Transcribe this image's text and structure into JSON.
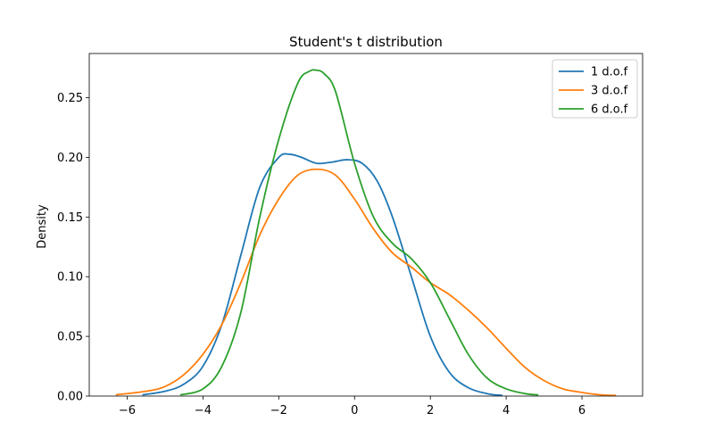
{
  "chart_data": {
    "type": "line",
    "title": "Student's t distribution",
    "xlabel": "",
    "ylabel": "Density",
    "xlim": [
      -7.0,
      7.6
    ],
    "ylim": [
      0.0,
      0.287
    ],
    "xticks": [
      -6,
      -4,
      -2,
      0,
      2,
      4,
      6
    ],
    "xtick_labels": [
      "−6",
      "−4",
      "−2",
      "0",
      "2",
      "4",
      "6"
    ],
    "yticks": [
      0.0,
      0.05,
      0.1,
      0.15,
      0.2,
      0.25
    ],
    "ytick_labels": [
      "0.00",
      "0.05",
      "0.10",
      "0.15",
      "0.20",
      "0.25"
    ],
    "grid": false,
    "legend": "top-right",
    "series": [
      {
        "name": "1 d.o.f",
        "color": "#1f77b4",
        "x": [
          -5.6,
          -5.0,
          -4.5,
          -4.0,
          -3.5,
          -3.0,
          -2.5,
          -2.0,
          -1.7,
          -1.4,
          -1.0,
          -0.6,
          -0.2,
          0.2,
          0.6,
          1.0,
          1.5,
          2.0,
          2.5,
          3.0,
          3.5,
          3.9
        ],
        "y": [
          0.001,
          0.004,
          0.01,
          0.025,
          0.06,
          0.118,
          0.175,
          0.2,
          0.2025,
          0.2,
          0.195,
          0.196,
          0.198,
          0.195,
          0.18,
          0.15,
          0.1,
          0.05,
          0.02,
          0.007,
          0.002,
          0.0005
        ]
      },
      {
        "name": "3 d.o.f",
        "color": "#ff7f0e",
        "x": [
          -6.3,
          -5.5,
          -5.0,
          -4.5,
          -4.0,
          -3.5,
          -3.0,
          -2.5,
          -2.0,
          -1.5,
          -1.0,
          -0.5,
          0.0,
          0.5,
          1.0,
          1.5,
          2.0,
          2.5,
          3.0,
          3.5,
          4.0,
          4.5,
          5.0,
          5.5,
          6.0,
          6.5,
          6.9
        ],
        "y": [
          0.001,
          0.004,
          0.008,
          0.018,
          0.035,
          0.06,
          0.095,
          0.135,
          0.165,
          0.185,
          0.19,
          0.185,
          0.165,
          0.14,
          0.12,
          0.108,
          0.095,
          0.085,
          0.072,
          0.057,
          0.04,
          0.024,
          0.013,
          0.006,
          0.003,
          0.001,
          0.0005
        ]
      },
      {
        "name": "6 d.o.f",
        "color": "#2ca02c",
        "x": [
          -4.6,
          -4.0,
          -3.5,
          -3.0,
          -2.5,
          -2.0,
          -1.5,
          -1.2,
          -1.0,
          -0.8,
          -0.5,
          0.0,
          0.5,
          1.0,
          1.5,
          2.0,
          2.5,
          3.0,
          3.5,
          4.0,
          4.5,
          4.85
        ],
        "y": [
          0.001,
          0.006,
          0.025,
          0.07,
          0.15,
          0.215,
          0.262,
          0.272,
          0.273,
          0.27,
          0.255,
          0.195,
          0.15,
          0.128,
          0.115,
          0.095,
          0.065,
          0.035,
          0.015,
          0.006,
          0.002,
          0.001
        ]
      }
    ]
  }
}
